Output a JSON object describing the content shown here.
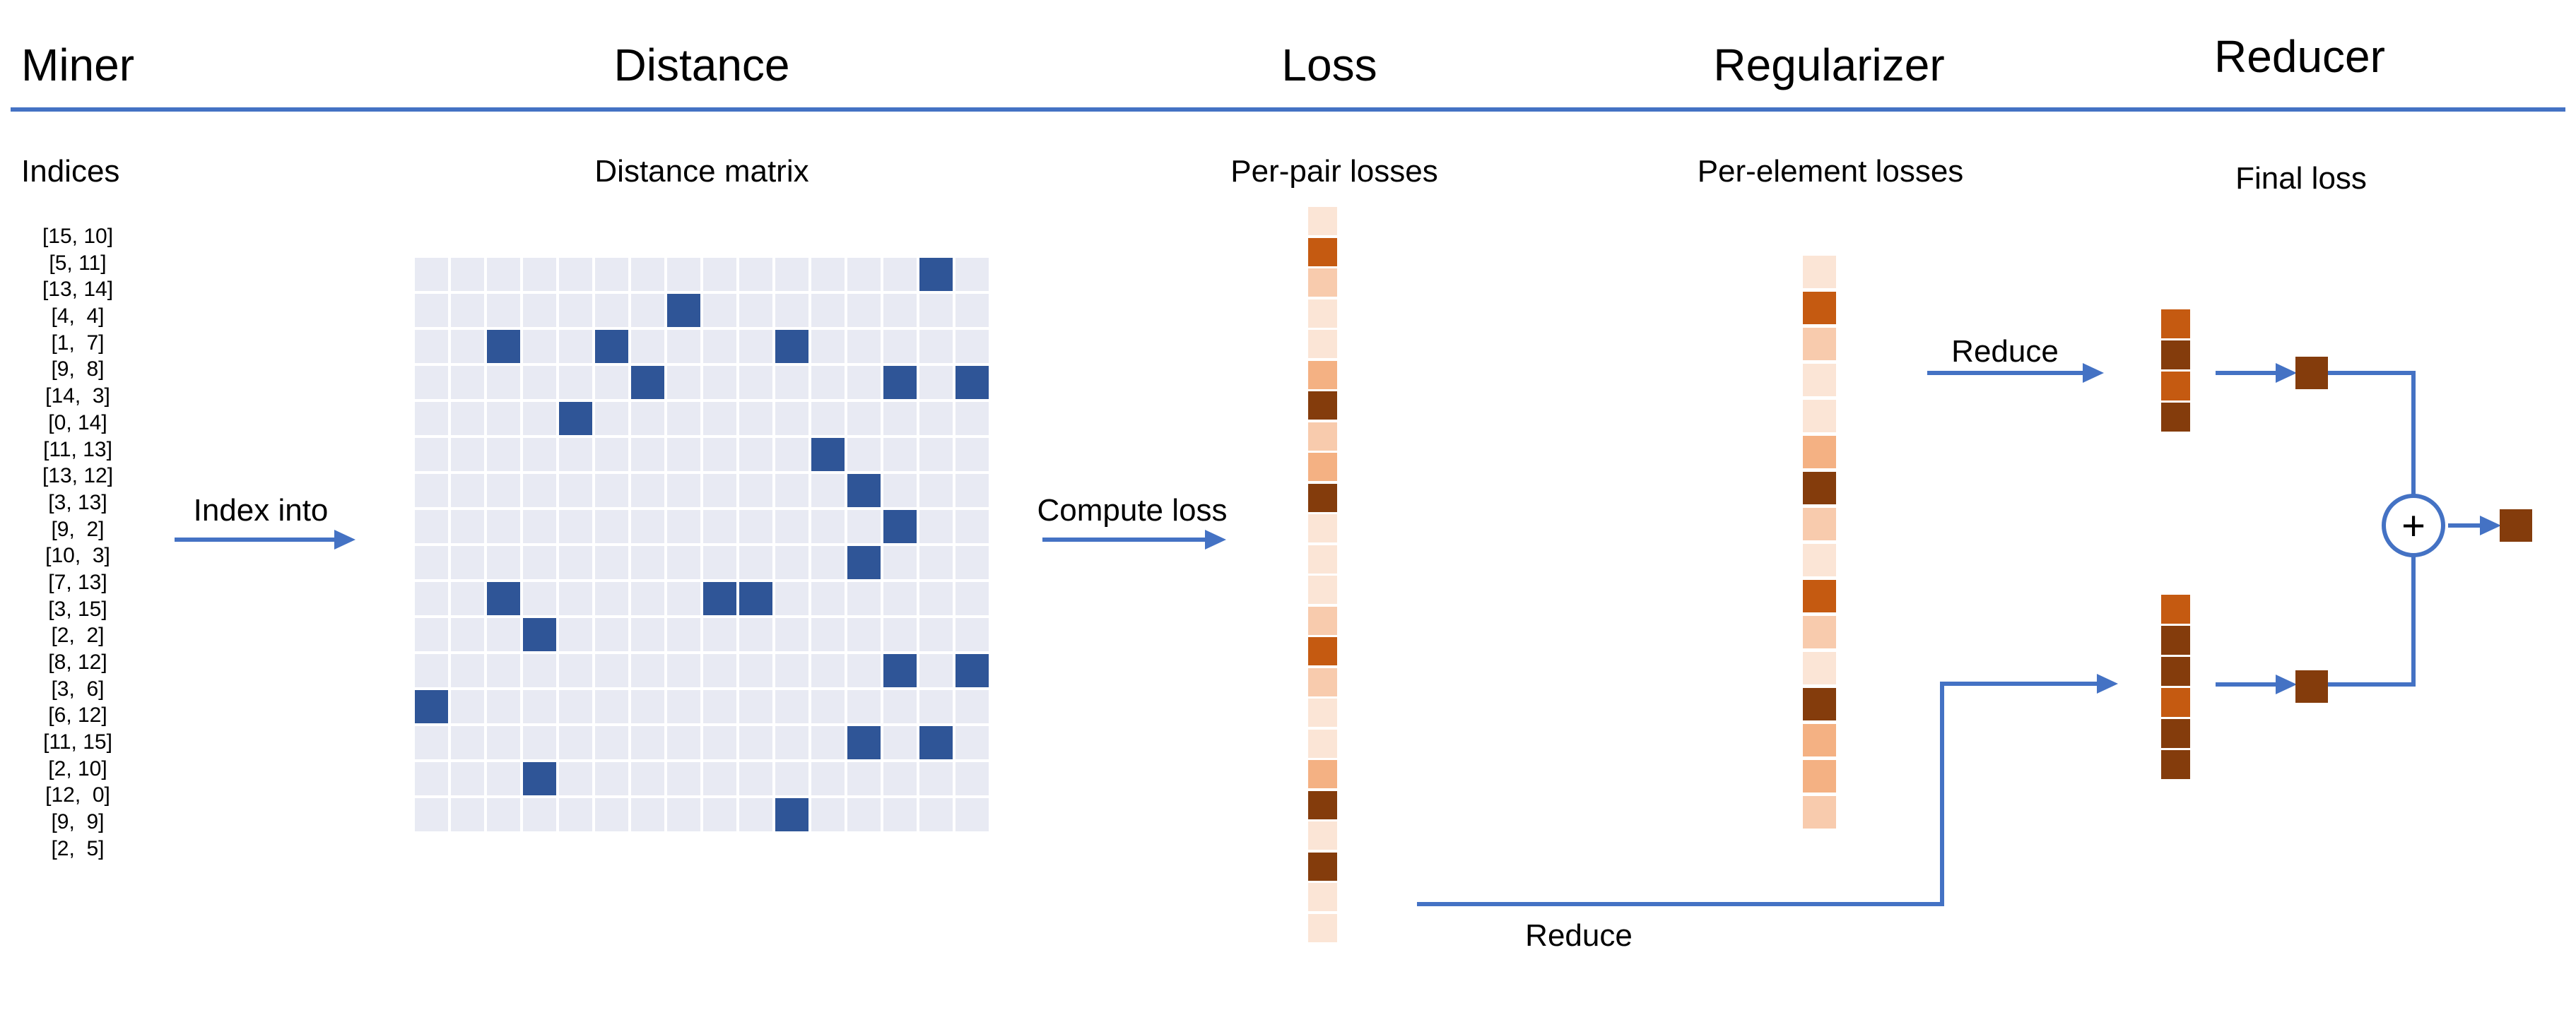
{
  "header": {
    "miner": "Miner",
    "distance": "Distance",
    "loss": "Loss",
    "regularizer": "Regularizer",
    "reducer": "Reducer"
  },
  "colors": {
    "accent_blue": "#4472C4",
    "matrix_filled": "#2F5597",
    "matrix_empty": "#E8EAF3",
    "square_dark": "#843C0C",
    "heat_scale": [
      "#FBE5D6",
      "#F8CBAD",
      "#F4B183",
      "#C55A11",
      "#843C0C"
    ]
  },
  "miner": {
    "subtitle": "Indices",
    "arrow_label": "Index into",
    "index_labels": [
      "[15, 10]",
      "[5, 11]",
      "[13, 14]",
      "[4,  4]",
      "[1,  7]",
      "[9,  8]",
      "[14,  3]",
      "[0, 14]",
      "[11, 13]",
      "[13, 12]",
      "[3, 13]",
      "[9,  2]",
      "[10,  3]",
      "[7, 13]",
      "[3, 15]",
      "[2,  2]",
      "[8, 12]",
      "[3,  6]",
      "[6, 12]",
      "[11, 15]",
      "[2, 10]",
      "[12,  0]",
      "[9,  9]",
      "[2,  5]"
    ],
    "pairs": [
      [
        15,
        10
      ],
      [
        5,
        11
      ],
      [
        13,
        14
      ],
      [
        4,
        4
      ],
      [
        1,
        7
      ],
      [
        9,
        8
      ],
      [
        14,
        3
      ],
      [
        0,
        14
      ],
      [
        11,
        13
      ],
      [
        13,
        12
      ],
      [
        3,
        13
      ],
      [
        9,
        2
      ],
      [
        10,
        3
      ],
      [
        7,
        13
      ],
      [
        3,
        15
      ],
      [
        2,
        2
      ],
      [
        8,
        12
      ],
      [
        3,
        6
      ],
      [
        6,
        12
      ],
      [
        11,
        15
      ],
      [
        2,
        10
      ],
      [
        12,
        0
      ],
      [
        9,
        9
      ],
      [
        2,
        5
      ]
    ]
  },
  "distance": {
    "subtitle": "Distance matrix",
    "grid_rows": 16,
    "grid_cols": 16
  },
  "loss": {
    "subtitle": "Per-pair losses",
    "arrow_label": "Compute loss",
    "cell_levels": [
      0,
      3,
      1,
      0,
      0,
      2,
      4,
      1,
      2,
      4,
      0,
      0,
      0,
      1,
      3,
      1,
      0,
      0,
      2,
      4,
      0,
      4,
      0,
      0
    ],
    "reduce_label": "Reduce"
  },
  "regularizer": {
    "subtitle": "Per-element losses",
    "cell_levels": [
      0,
      3,
      1,
      0,
      0,
      2,
      4,
      1,
      0,
      3,
      1,
      0,
      4,
      2,
      2,
      1
    ],
    "reduce_label": "Reduce"
  },
  "reducer": {
    "subtitle": "Final loss",
    "upper_stack_levels": [
      3,
      4,
      3,
      4
    ],
    "lower_stack_levels": [
      3,
      4,
      4,
      3,
      4,
      4
    ],
    "plus_sign": "+"
  }
}
